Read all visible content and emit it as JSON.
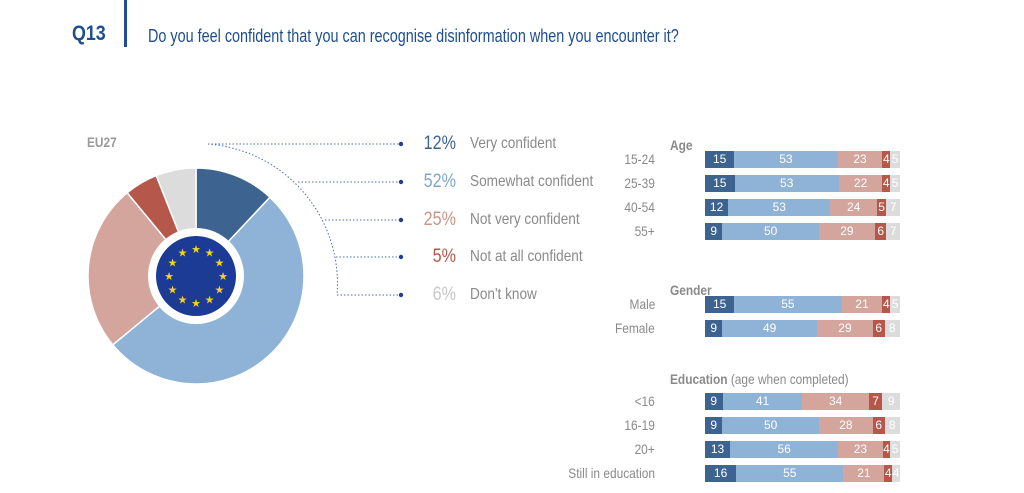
{
  "header": {
    "question_number": "Q13",
    "question": "Do you feel confident that you can recognise disinformation when you encounter it?"
  },
  "colors": {
    "very": "#3d6491",
    "somewhat": "#8fb3d6",
    "notvery": "#d3a59c",
    "notatall": "#b5574a",
    "dontknow": "#dcdcdc",
    "title": "#1f4e8f"
  },
  "chart_data": [
    {
      "type": "pie",
      "title": "EU27",
      "donut": true,
      "legend": [
        {
          "label": "Very confident",
          "value": 12,
          "pct": "12%",
          "color": "#3d6491"
        },
        {
          "label": "Somewhat confident",
          "value": 52,
          "pct": "52%",
          "color": "#8fb3d6"
        },
        {
          "label": "Not very confident",
          "value": 25,
          "pct": "25%",
          "color": "#d3a59c"
        },
        {
          "label": "Not at all confident",
          "value": 5,
          "pct": "5%",
          "color": "#b5574a"
        },
        {
          "label": "Don't know",
          "value": 6,
          "pct": "6%",
          "color": "#dcdcdc"
        }
      ]
    },
    {
      "type": "bar",
      "stacked": true,
      "orientation": "horizontal",
      "series_names": [
        "Very confident",
        "Somewhat confident",
        "Not very confident",
        "Not at all confident",
        "Don't know"
      ],
      "groups": [
        {
          "title": "Age",
          "subtitle": "",
          "rows": [
            {
              "label": "15-24",
              "values": [
                15,
                53,
                23,
                4,
                5
              ]
            },
            {
              "label": "25-39",
              "values": [
                15,
                53,
                22,
                4,
                5
              ]
            },
            {
              "label": "40-54",
              "values": [
                12,
                53,
                24,
                5,
                7
              ]
            },
            {
              "label": "55+",
              "values": [
                9,
                50,
                29,
                6,
                7
              ]
            }
          ]
        },
        {
          "title": "Gender",
          "subtitle": "",
          "rows": [
            {
              "label": "Male",
              "values": [
                15,
                55,
                21,
                4,
                5
              ]
            },
            {
              "label": "Female",
              "values": [
                9,
                49,
                29,
                6,
                8
              ]
            }
          ]
        },
        {
          "title": "Education",
          "subtitle": "(age when completed)",
          "rows": [
            {
              "label": "<16",
              "values": [
                9,
                41,
                34,
                7,
                9
              ]
            },
            {
              "label": "16-19",
              "values": [
                9,
                50,
                28,
                6,
                8
              ]
            },
            {
              "label": "20+",
              "values": [
                13,
                56,
                23,
                4,
                5
              ]
            },
            {
              "label": "Still in education",
              "values": [
                16,
                55,
                21,
                4,
                4
              ]
            }
          ]
        }
      ]
    }
  ]
}
